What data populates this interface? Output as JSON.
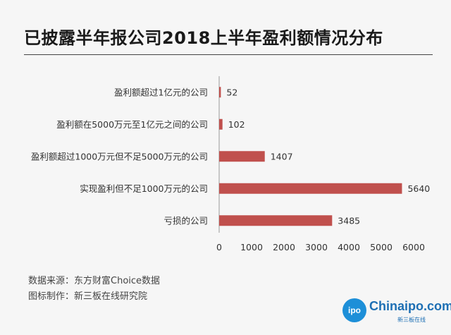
{
  "title": "已披露半年报公司2018上半年盈利额情况分布",
  "footer": {
    "source": "数据来源：东方财富Choice数据",
    "producer": "图标制作：新三板在线研究院"
  },
  "logo": {
    "badge": "ipo",
    "text": "Chinaipo.com",
    "subtext": "新三板在线"
  },
  "colors": {
    "bar": "#c0504d",
    "background": "#f6f6f6"
  },
  "chart_data": {
    "type": "bar",
    "orientation": "horizontal",
    "title": "已披露半年报公司2018上半年盈利额情况分布",
    "categories": [
      "盈利额超过1亿元的公司",
      "盈利额在5000万元至1亿元之间的公司",
      "盈利额超过1000万元但不足5000万元的公司",
      "实现盈利但不足1000万元的公司",
      "亏损的公司"
    ],
    "values": [
      52,
      102,
      1407,
      5640,
      3485
    ],
    "xlim": [
      0,
      6000
    ],
    "xticks": [
      0,
      1000,
      2000,
      3000,
      4000,
      5000,
      6000
    ],
    "grid": false,
    "data_labels": true
  }
}
